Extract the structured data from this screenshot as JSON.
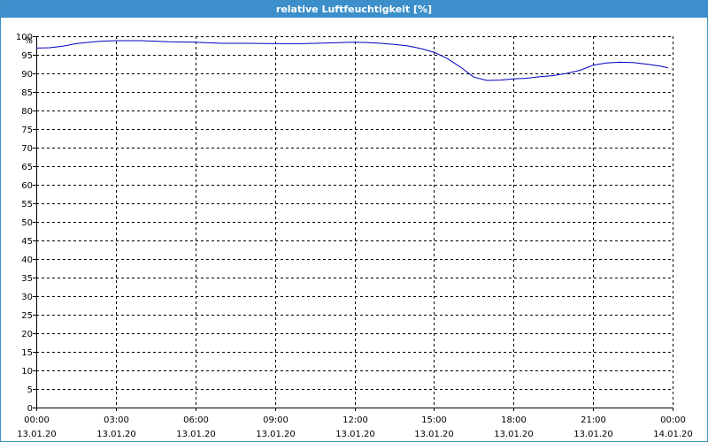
{
  "window": {
    "title": "relative Luftfeuchtigkeit [%]"
  },
  "colors": {
    "title_bar": "#3c8fca",
    "line": "#0000c0",
    "grid": "#000000"
  },
  "chart_data": {
    "type": "line",
    "title": "relative Luftfeuchtigkeit [%]",
    "ylabel": "%",
    "xlabel": "",
    "ylim": [
      0,
      100
    ],
    "yticks": [
      0,
      5,
      10,
      15,
      20,
      25,
      30,
      35,
      40,
      45,
      50,
      55,
      60,
      65,
      70,
      75,
      80,
      85,
      90,
      95,
      100
    ],
    "xlim_hours": [
      0,
      24
    ],
    "xticks": [
      {
        "time": "00:00",
        "date": "13.01.20"
      },
      {
        "time": "03:00",
        "date": "13.01.20"
      },
      {
        "time": "06:00",
        "date": "13.01.20"
      },
      {
        "time": "09:00",
        "date": "13.01.20"
      },
      {
        "time": "12:00",
        "date": "13.01.20"
      },
      {
        "time": "15:00",
        "date": "13.01.20"
      },
      {
        "time": "18:00",
        "date": "13.01.20"
      },
      {
        "time": "21:00",
        "date": "13.01.20"
      },
      {
        "time": "00:00",
        "date": "14.01.20"
      }
    ],
    "grid": true,
    "series": [
      {
        "x": [
          "13.01.20 00:00",
          "13.01.20 00:30",
          "13.01.20 01:00",
          "13.01.20 01:30",
          "13.01.20 02:00",
          "13.01.20 02:30",
          "13.01.20 03:00",
          "13.01.20 04:00",
          "13.01.20 05:00",
          "13.01.20 06:00",
          "13.01.20 07:00",
          "13.01.20 08:00",
          "13.01.20 09:00",
          "13.01.20 10:00",
          "13.01.20 11:00",
          "13.01.20 12:00",
          "13.01.20 12:30",
          "13.01.20 13:00",
          "13.01.20 13:30",
          "13.01.20 14:00",
          "13.01.20 14:30",
          "13.01.20 15:00",
          "13.01.20 15:30",
          "13.01.20 16:00",
          "13.01.20 16:30",
          "13.01.20 17:00",
          "13.01.20 17:30",
          "13.01.20 18:00",
          "13.01.20 18:30",
          "13.01.20 19:00",
          "13.01.20 19:30",
          "13.01.20 20:00",
          "13.01.20 20:30",
          "13.01.20 21:00",
          "13.01.20 21:30",
          "13.01.20 22:00",
          "13.01.20 22:30",
          "13.01.20 23:00",
          "13.01.20 23:30",
          "13.01.20 23:50"
        ],
        "values": [
          96.8,
          96.9,
          97.3,
          98.0,
          98.4,
          98.7,
          98.8,
          98.8,
          98.5,
          98.4,
          98.1,
          98.1,
          98.0,
          98.0,
          98.2,
          98.4,
          98.3,
          98.1,
          97.8,
          97.4,
          96.7,
          95.7,
          94.0,
          91.7,
          89.0,
          88.1,
          88.2,
          88.5,
          88.7,
          89.1,
          89.4,
          90.0,
          90.8,
          92.2,
          92.8,
          93.0,
          92.9,
          92.5,
          92.0,
          91.5
        ]
      }
    ]
  }
}
